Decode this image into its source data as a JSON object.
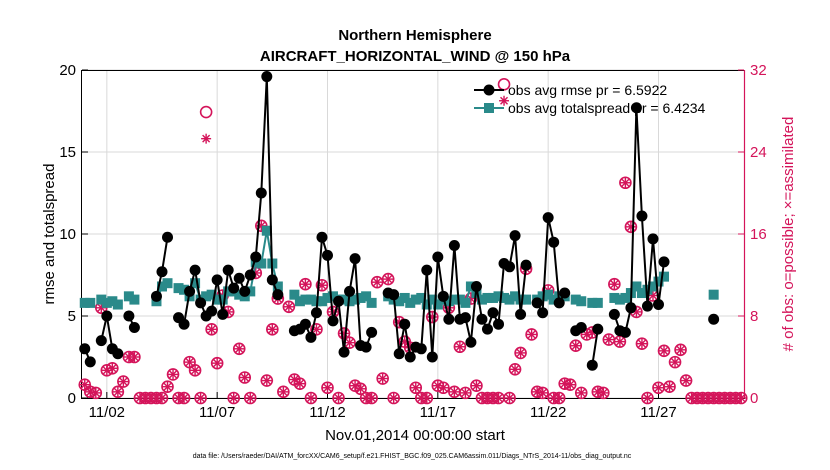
{
  "chart_data": {
    "type": "line",
    "title_line1": "Northern Hemisphere",
    "title_line2": "AIRCRAFT_HORIZONTAL_WIND @ 150 hPa",
    "xlabel": "Nov.01,2014 00:00:00 start",
    "ylabel_left": "rmse and totalspread",
    "ylabel_right": "# of obs: o=possible; ×=assimilated",
    "footer": "data file: /Users/raeder/DAI/ATM_forcXX/CAM6_setup/f.e21.FHIST_BGC.f09_025.CAM6assim.011/Diags_NTrS_2014-11/obs_diag_output.nc",
    "x_tick_labels": [
      "11/02",
      "11/07",
      "11/12",
      "11/17",
      "11/22",
      "11/27"
    ],
    "x_tick_days": [
      1,
      6,
      11,
      16,
      21,
      26
    ],
    "xlim_days": [
      -0.125,
      29.875
    ],
    "ylim_left": [
      0,
      20
    ],
    "y_ticks_left": [
      0,
      5,
      10,
      15,
      20
    ],
    "ylim_right": [
      0,
      32
    ],
    "y_ticks_right": [
      0,
      8,
      16,
      24,
      32
    ],
    "colors": {
      "rmse": "#000000",
      "spread": "#2a8a8a",
      "obs": "#d4145a",
      "grid": "#d9d9d9"
    },
    "series": [
      {
        "name": "rmse",
        "legend": "obs avg rmse pr = 6.5922",
        "values": [
          3.0,
          2.2,
          null,
          3.5,
          5.0,
          3.0,
          2.7,
          null,
          5.0,
          4.3,
          null,
          null,
          null,
          6.2,
          7.7,
          9.8,
          null,
          4.9,
          4.5,
          6.5,
          7.8,
          5.8,
          5.0,
          5.3,
          7.2,
          5.1,
          7.8,
          6.7,
          7.3,
          6.5,
          7.5,
          8.6,
          12.5,
          19.6,
          7.2,
          6.3,
          null,
          null,
          4.1,
          4.2,
          4.5,
          3.7,
          5.2,
          9.8,
          8.7,
          4.7,
          5.9,
          2.8,
          6.5,
          8.5,
          3.2,
          3.1,
          4.0,
          null,
          null,
          6.4,
          6.3,
          2.7,
          4.5,
          2.5,
          3.1,
          3.0,
          7.8,
          2.5,
          8.6,
          6.2,
          4.8,
          9.3,
          4.8,
          4.9,
          3.4,
          6.8,
          4.8,
          4.2,
          5.2,
          4.5,
          8.2,
          8.0,
          9.9,
          5.1,
          8.1,
          null,
          5.8,
          5.2,
          11.0,
          9.5,
          5.8,
          6.4,
          null,
          4.1,
          4.3,
          null,
          2.0,
          4.2,
          null,
          null,
          5.1,
          4.1,
          4.0,
          5.5,
          17.7,
          11.1,
          5.6,
          9.7,
          5.7,
          8.3,
          null,
          null,
          null,
          null,
          null,
          null,
          null,
          null,
          4.8,
          null,
          null,
          null,
          null,
          null
        ]
      },
      {
        "name": "totalspread",
        "legend": "obs avg totalspread pr = 6.4234",
        "values": [
          5.8,
          5.8,
          null,
          6.0,
          5.8,
          5.9,
          5.7,
          null,
          6.2,
          6.0,
          null,
          null,
          null,
          5.9,
          6.8,
          7.0,
          null,
          6.7,
          6.6,
          6.2,
          7.0,
          6.0,
          6.2,
          6.3,
          6.0,
          6.0,
          6.5,
          6.5,
          6.3,
          6.2,
          6.5,
          8.3,
          8.2,
          10.2,
          8.2,
          6.8,
          null,
          null,
          6.3,
          5.9,
          6.0,
          6.0,
          5.9,
          5.9,
          6.1,
          6.2,
          6.0,
          6.0,
          5.9,
          6.0,
          6.1,
          6.2,
          5.8,
          null,
          null,
          6.2,
          6.0,
          5.9,
          6.1,
          5.8,
          6.0,
          6.1,
          5.7,
          6.0,
          5.7,
          6.0,
          5.9,
          6.0,
          6.0,
          5.8,
          6.8,
          6.4,
          6.0,
          6.1,
          6.1,
          6.2,
          6.1,
          6.0,
          6.2,
          6.0,
          6.0,
          null,
          6.0,
          6.2,
          6.3,
          6.0,
          6.2,
          6.2,
          null,
          6.0,
          5.9,
          null,
          5.8,
          5.8,
          null,
          null,
          6.1,
          6.0,
          6.1,
          6.4,
          6.8,
          6.4,
          6.6,
          6.8,
          7.1,
          7.4,
          null,
          null,
          null,
          null,
          null,
          null,
          null,
          null,
          6.3,
          null,
          null,
          null,
          null,
          null
        ]
      },
      {
        "name": "obs_possible",
        "marker": "o",
        "axis": "right",
        "values": [
          1.3,
          0.6,
          0.5,
          8.8,
          2.7,
          2.9,
          0.6,
          1.6,
          4.0,
          4.0,
          0.0,
          0.0,
          0.0,
          0.0,
          0.0,
          1.1,
          2.3,
          0.0,
          0.0,
          3.5,
          2.7,
          0.0,
          27.9,
          6.7,
          3.4,
          10.0,
          8.4,
          0.0,
          4.8,
          2.0,
          0.0,
          12.2,
          16.8,
          1.7,
          6.7,
          9.7,
          0.6,
          8.9,
          1.8,
          1.4,
          11.1,
          0.0,
          6.7,
          11.0,
          1.0,
          8.4,
          0.0,
          6.3,
          5.4,
          1.2,
          0.9,
          0.0,
          0.0,
          11.3,
          1.9,
          11.6,
          0.0,
          7.4,
          5.5,
          4.9,
          1.0,
          0.0,
          0.0,
          7.9,
          1.2,
          1.0,
          8.8,
          0.6,
          5.0,
          0.5,
          9.7,
          1.2,
          0.0,
          0.0,
          0.0,
          0.0,
          30.6,
          0.0,
          2.8,
          4.4,
          12.6,
          6.2,
          0.6,
          0.5,
          10.5,
          0.0,
          0.0,
          1.4,
          1.3,
          5.1,
          0.5,
          6.2,
          6.4,
          0.6,
          0.5,
          5.7,
          11.1,
          5.5,
          21.0,
          16.7,
          8.4,
          5.3,
          0.0,
          10.0,
          1.0,
          4.6,
          1.1,
          3.5,
          4.7,
          1.7,
          0.0,
          0.0,
          0.0,
          0.0,
          0.0,
          0.0,
          0.0,
          0.0,
          0.0,
          0.0
        ]
      },
      {
        "name": "obs_assimilated",
        "marker": "x",
        "axis": "right",
        "values": [
          1.3,
          0.6,
          0.5,
          8.8,
          2.7,
          2.9,
          0.6,
          1.6,
          4.0,
          4.0,
          0.0,
          0.0,
          0.0,
          0.0,
          0.0,
          1.1,
          2.3,
          0.0,
          0.0,
          3.5,
          2.7,
          0.0,
          25.3,
          6.7,
          3.4,
          10.0,
          8.4,
          0.0,
          4.8,
          2.0,
          0.0,
          12.2,
          16.8,
          1.7,
          6.7,
          9.7,
          0.6,
          8.9,
          1.8,
          1.4,
          11.1,
          0.0,
          6.7,
          11.0,
          1.0,
          8.4,
          0.0,
          6.3,
          5.4,
          1.2,
          0.9,
          0.0,
          0.0,
          11.3,
          1.9,
          11.6,
          0.0,
          7.4,
          5.5,
          4.9,
          1.0,
          0.0,
          0.0,
          7.9,
          1.2,
          1.0,
          8.8,
          0.6,
          5.0,
          0.5,
          9.7,
          1.2,
          0.0,
          0.0,
          0.0,
          0.0,
          29.0,
          0.0,
          2.8,
          4.4,
          12.6,
          6.2,
          0.6,
          0.5,
          10.5,
          0.0,
          0.0,
          1.4,
          1.3,
          5.1,
          0.5,
          6.2,
          6.4,
          0.6,
          0.5,
          5.7,
          11.1,
          5.5,
          21.0,
          16.7,
          8.4,
          5.3,
          0.0,
          10.0,
          1.0,
          4.6,
          1.1,
          3.5,
          4.7,
          1.7,
          0.0,
          0.0,
          0.0,
          0.0,
          0.0,
          0.0,
          0.0,
          0.0,
          0.0,
          0.0
        ]
      }
    ]
  }
}
